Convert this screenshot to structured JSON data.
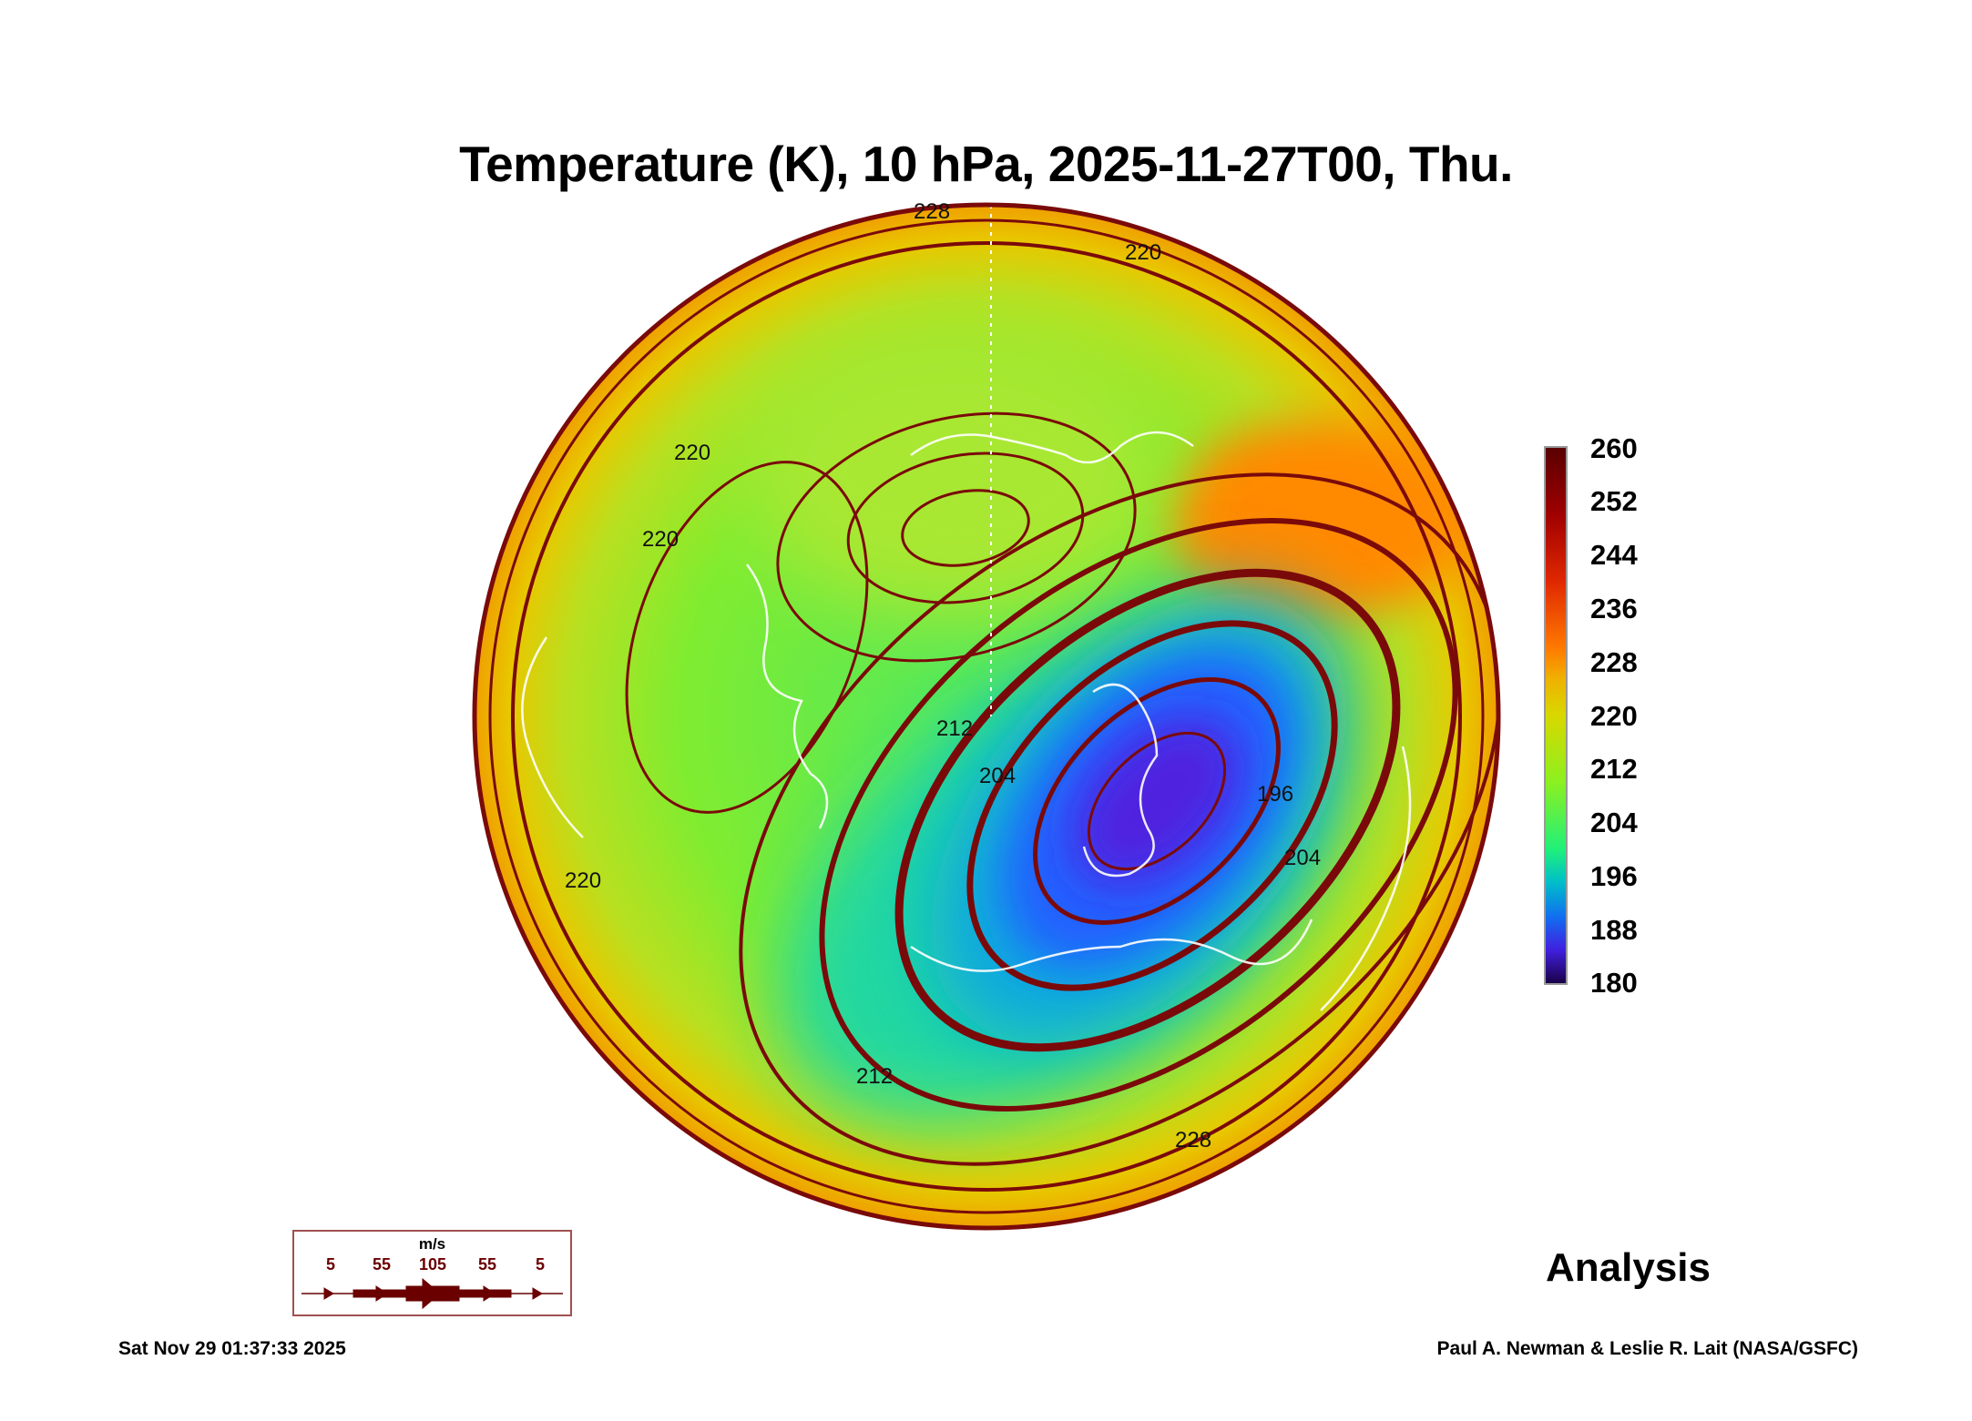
{
  "title": "Temperature (K), 10 hPa, 2025-11-27T00, Thu.",
  "colorbar": {
    "labels": [
      "260",
      "252",
      "244",
      "236",
      "228",
      "220",
      "212",
      "204",
      "196",
      "188",
      "180"
    ],
    "range": [
      180,
      260
    ],
    "colors": [
      "#5a0000",
      "#a00000",
      "#e02800",
      "#ff7a00",
      "#d8d800",
      "#8cf020",
      "#20f07a",
      "#00c0c8",
      "#1070f0",
      "#4020e0",
      "#1a0048"
    ]
  },
  "contour_labels": [
    "228",
    "220",
    "220",
    "220",
    "212",
    "204",
    "196",
    "204",
    "212",
    "228",
    "220"
  ],
  "product_label": "Analysis",
  "wind_legend": {
    "unit": "m/s",
    "values": [
      "5",
      "55",
      "105",
      "55",
      "5"
    ],
    "color": "#6a0000"
  },
  "footer": {
    "timestamp": "Sat Nov 29 01:37:33 2025",
    "credit": "Paul A. Newman & Leslie R. Lait (NASA/GSFC)"
  }
}
